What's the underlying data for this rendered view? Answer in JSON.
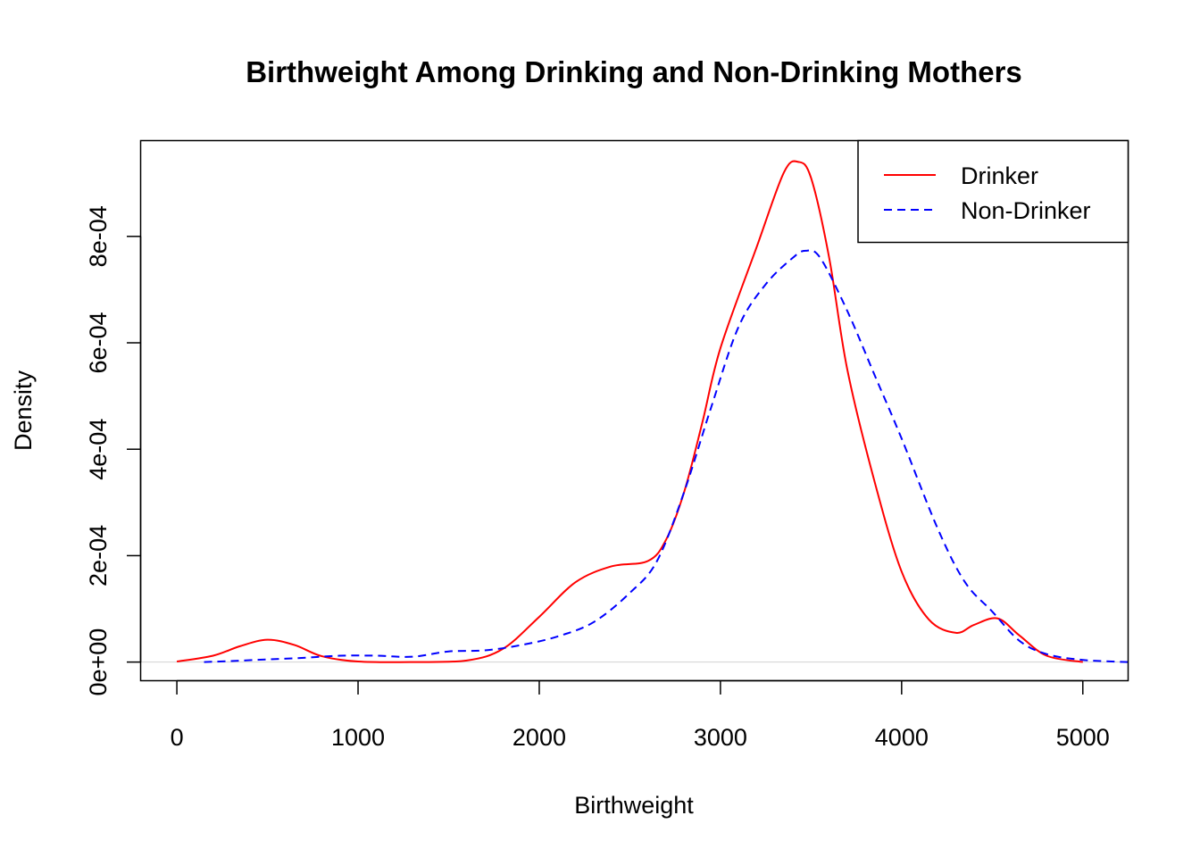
{
  "chart_data": {
    "type": "line",
    "title": "Birthweight Among Drinking and Non-Drinking Mothers",
    "xlabel": "Birthweight",
    "ylabel": "Density",
    "xlim": [
      -200,
      5250
    ],
    "ylim": [
      -3.5e-05,
      0.00098
    ],
    "x_ticks": [
      0,
      1000,
      2000,
      3000,
      4000,
      5000
    ],
    "x_tick_labels": [
      "0",
      "1000",
      "2000",
      "3000",
      "4000",
      "5000"
    ],
    "y_ticks": [
      0,
      0.0002,
      0.0004,
      0.0006,
      0.0008
    ],
    "y_tick_labels": [
      "0e+00",
      "2e-04",
      "4e-04",
      "6e-04",
      "8e-04"
    ],
    "grid": false,
    "zero_line": true,
    "legend_position": "top-right",
    "series": [
      {
        "name": "Drinker",
        "color": "#ff0000",
        "line_style": "solid",
        "x": [
          0,
          200,
          350,
          500,
          650,
          800,
          1000,
          1300,
          1600,
          1800,
          2000,
          2200,
          2400,
          2600,
          2700,
          2800,
          2900,
          3000,
          3200,
          3350,
          3430,
          3500,
          3600,
          3700,
          3850,
          4000,
          4150,
          4300,
          4400,
          4530,
          4650,
          4800,
          5000
        ],
        "y": [
          1e-06,
          1.2e-05,
          3e-05,
          4.2e-05,
          3.2e-05,
          1.1e-05,
          1e-06,
          0.0,
          3e-06,
          2.5e-05,
          8.5e-05,
          0.00015,
          0.00018,
          0.00019,
          0.00023,
          0.00032,
          0.00045,
          0.00059,
          0.00078,
          0.00092,
          0.00094,
          0.00091,
          0.00076,
          0.00055,
          0.00034,
          0.00017,
          8e-05,
          5.5e-05,
          7e-05,
          8.2e-05,
          5e-05,
          1.2e-05,
          0.0
        ]
      },
      {
        "name": "Non-Drinker",
        "color": "#0000ff",
        "line_style": "dashed",
        "x": [
          150,
          300,
          500,
          700,
          900,
          1100,
          1300,
          1500,
          1700,
          1900,
          2100,
          2300,
          2500,
          2650,
          2800,
          2950,
          3100,
          3250,
          3400,
          3470,
          3550,
          3700,
          3850,
          4000,
          4200,
          4350,
          4500,
          4650,
          4800,
          5000,
          5250
        ],
        "y": [
          0.0,
          2e-06,
          5e-06,
          8e-06,
          1.2e-05,
          1.2e-05,
          1e-05,
          2e-05,
          2.2e-05,
          3.2e-05,
          4.8e-05,
          7.5e-05,
          0.00013,
          0.00019,
          0.00032,
          0.00048,
          0.00063,
          0.00071,
          0.00076,
          0.000773,
          0.00076,
          0.00066,
          0.00054,
          0.00042,
          0.00025,
          0.00015,
          9.5e-05,
          4e-05,
          1.5e-05,
          4e-06,
          0.0
        ]
      }
    ]
  }
}
